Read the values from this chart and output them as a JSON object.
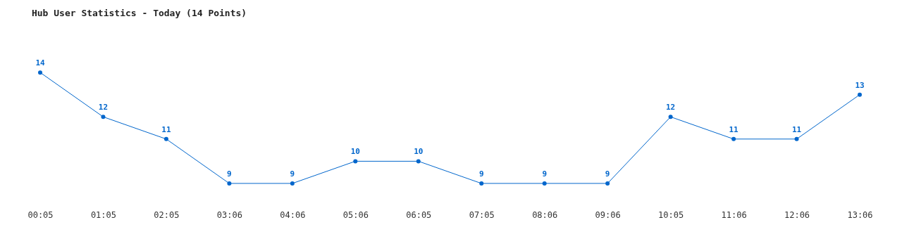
{
  "chart_data": {
    "type": "line",
    "title": "Hub User Statistics - Today (14 Points)",
    "categories": [
      "00:05",
      "01:05",
      "02:05",
      "03:06",
      "04:06",
      "05:06",
      "06:05",
      "07:05",
      "08:06",
      "09:06",
      "10:05",
      "11:06",
      "12:06",
      "13:06"
    ],
    "series": [
      {
        "color": "#0066cc",
        "values": [
          14,
          12,
          11,
          9,
          9,
          10,
          10,
          9,
          9,
          9,
          12,
          11,
          11,
          13
        ]
      }
    ],
    "data_labels": true,
    "marker": "circle",
    "line_style": "solid",
    "grid": false,
    "tick_labels": "x"
  }
}
